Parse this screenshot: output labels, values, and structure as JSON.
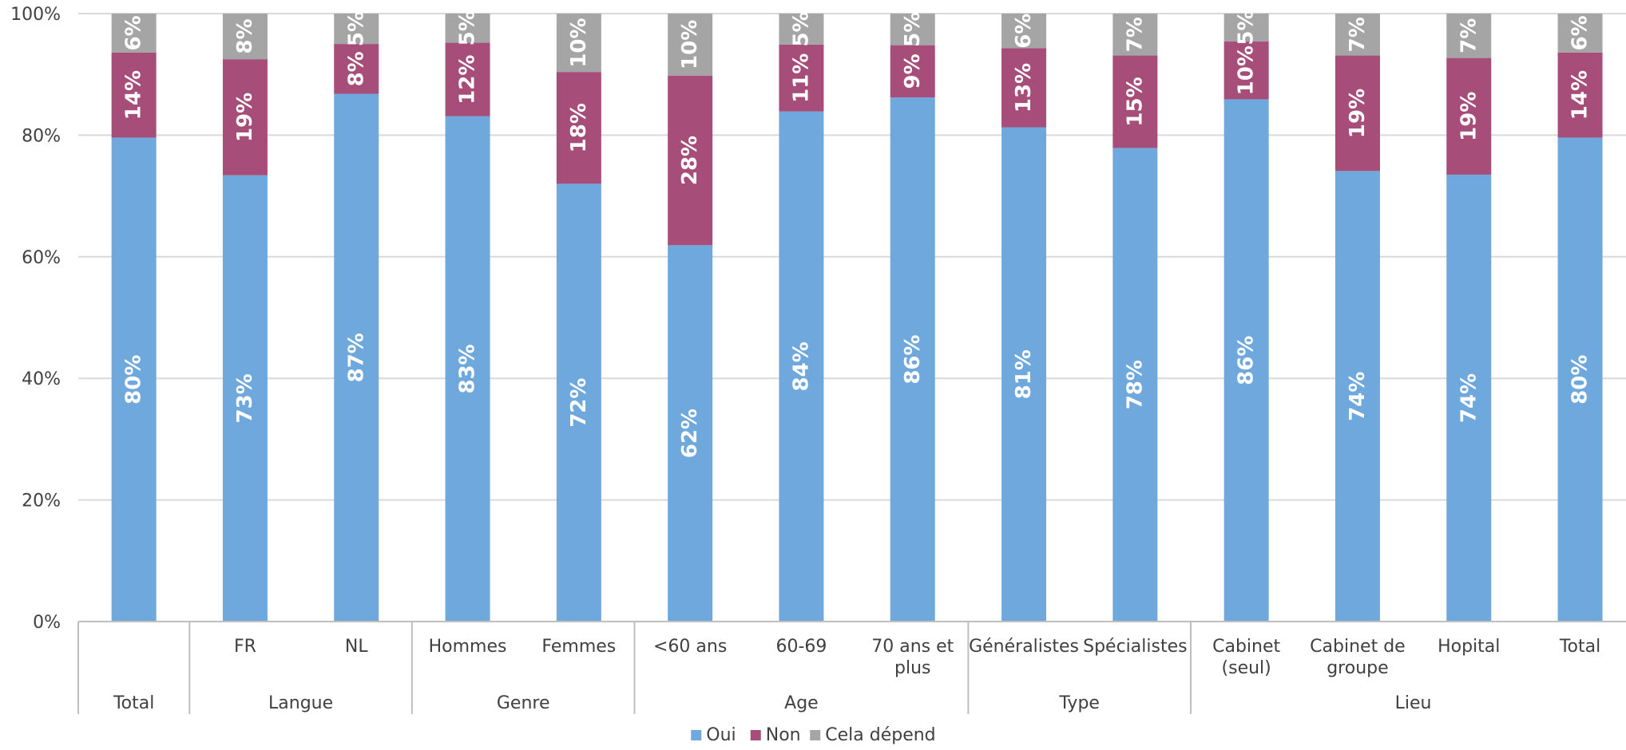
{
  "chart_data": {
    "type": "bar",
    "stacked": true,
    "orientation": "vertical",
    "title": "",
    "xlabel": "",
    "ylabel": "",
    "ylim": [
      0,
      100
    ],
    "y_ticks": [
      "0%",
      "20%",
      "40%",
      "60%",
      "80%",
      "100%"
    ],
    "grid": true,
    "legend_position": "bottom",
    "categories": [
      {
        "label": "",
        "group": "Total"
      },
      {
        "label": "FR",
        "group": "Langue"
      },
      {
        "label": "NL",
        "group": "Langue"
      },
      {
        "label": "Hommes",
        "group": "Genre"
      },
      {
        "label": "Femmes",
        "group": "Genre"
      },
      {
        "label": "<60 ans",
        "group": "Age"
      },
      {
        "label": "60-69",
        "group": "Age"
      },
      {
        "label": "70 ans et plus",
        "group": "Age"
      },
      {
        "label": "Généralistes",
        "group": "Type"
      },
      {
        "label": "Spécialistes",
        "group": "Type"
      },
      {
        "label": "Cabinet (seul)",
        "group": "Lieu"
      },
      {
        "label": "Cabinet de groupe",
        "group": "Lieu"
      },
      {
        "label": "Hopital",
        "group": "Lieu"
      },
      {
        "label": "Total",
        "group": "Lieu"
      }
    ],
    "groups": [
      "Total",
      "Langue",
      "Genre",
      "Age",
      "Type",
      "Lieu"
    ],
    "series": [
      {
        "name": "Oui",
        "color": "#6fa8dc",
        "values": [
          79.6,
          73.4,
          86.8,
          83.1,
          72.0,
          61.9,
          83.9,
          86.2,
          81.3,
          77.9,
          85.9,
          74.1,
          73.5,
          79.6
        ],
        "labels": [
          "80%",
          "73%",
          "87%",
          "83%",
          "72%",
          "62%",
          "84%",
          "86%",
          "81%",
          "78%",
          "86%",
          "74%",
          "74%",
          "80%"
        ]
      },
      {
        "name": "Non",
        "color": "#a64d79",
        "values": [
          14.0,
          19.1,
          8.2,
          12.1,
          18.4,
          27.9,
          11.0,
          8.6,
          13.0,
          15.2,
          9.5,
          19.0,
          19.2,
          14.0
        ],
        "labels": [
          "14%",
          "19%",
          "8%",
          "12%",
          "18%",
          "28%",
          "11%",
          "9%",
          "13%",
          "15%",
          "10%",
          "19%",
          "19%",
          "14%"
        ]
      },
      {
        "name": "Cela dépend",
        "color": "#a5a5a5",
        "values": [
          6.4,
          7.5,
          5.0,
          4.8,
          9.6,
          10.2,
          5.1,
          5.2,
          5.7,
          6.9,
          4.6,
          6.9,
          7.3,
          6.4
        ],
        "labels": [
          "6%",
          "8%",
          "5%",
          "5%",
          "10%",
          "10%",
          "5%",
          "5%",
          "6%",
          "7%",
          "5%",
          "7%",
          "7%",
          "6%"
        ]
      }
    ]
  }
}
